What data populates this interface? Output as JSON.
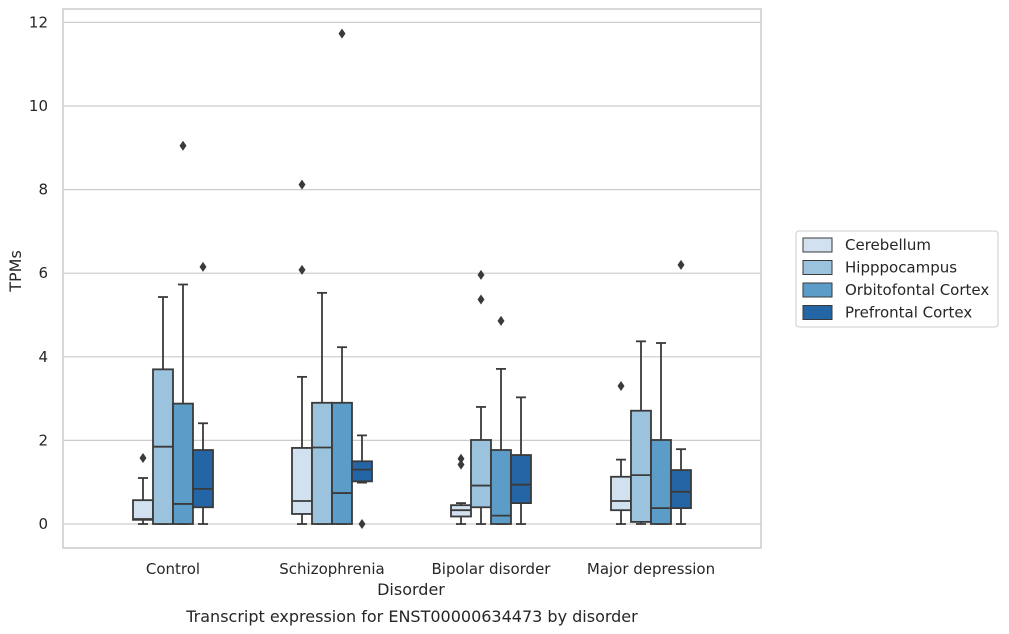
{
  "chart_data": {
    "type": "box",
    "caption": "Transcript expression for ENST00000634473 by disorder",
    "xlabel": "Disorder",
    "ylabel": "TPMs",
    "ylim": [
      -0.55,
      12.3
    ],
    "yticks": [
      0,
      2,
      4,
      6,
      8,
      10,
      12
    ],
    "grid": "horizontal",
    "legend_position": "right",
    "categories": [
      "Control",
      "Schizophrenia",
      "Bipolar disorder",
      "Major depression"
    ],
    "series": [
      {
        "name": "Cerebellum",
        "color": "#d1e1f0",
        "boxes": [
          {
            "min": 0.0,
            "q1": 0.1,
            "median": 0.12,
            "q3": 0.57,
            "max": 1.1,
            "outliers": [
              1.58
            ]
          },
          {
            "min": 0.0,
            "q1": 0.24,
            "median": 0.55,
            "q3": 1.82,
            "max": 3.52,
            "outliers": [
              6.08,
              8.12
            ]
          },
          {
            "min": 0.0,
            "q1": 0.18,
            "median": 0.33,
            "q3": 0.45,
            "max": 0.5,
            "outliers": [
              1.42,
              1.56
            ]
          },
          {
            "min": 0.0,
            "q1": 0.33,
            "median": 0.55,
            "q3": 1.13,
            "max": 1.54,
            "outliers": [
              3.3
            ]
          }
        ]
      },
      {
        "name": "Hipppocampus",
        "color": "#9cc3de",
        "boxes": [
          {
            "min": 0.0,
            "q1": 0.0,
            "median": 1.85,
            "q3": 3.7,
            "max": 5.43,
            "outliers": []
          },
          {
            "min": 0.0,
            "q1": 0.0,
            "median": 1.83,
            "q3": 2.9,
            "max": 5.53,
            "outliers": []
          },
          {
            "min": 0.0,
            "q1": 0.4,
            "median": 0.92,
            "q3": 2.01,
            "max": 2.8,
            "outliers": [
              5.37,
              5.96
            ]
          },
          {
            "min": 0.0,
            "q1": 0.05,
            "median": 1.17,
            "q3": 2.71,
            "max": 4.37,
            "outliers": []
          }
        ]
      },
      {
        "name": "Orbitofontal Cortex",
        "color": "#5b9cc8",
        "boxes": [
          {
            "min": 0.0,
            "q1": 0.0,
            "median": 0.48,
            "q3": 2.88,
            "max": 5.73,
            "outliers": [
              9.05
            ]
          },
          {
            "min": 0.0,
            "q1": 0.0,
            "median": 0.74,
            "q3": 2.9,
            "max": 4.23,
            "outliers": [
              11.73
            ]
          },
          {
            "min": 0.0,
            "q1": 0.0,
            "median": 0.2,
            "q3": 1.77,
            "max": 3.71,
            "outliers": [
              4.86
            ]
          },
          {
            "min": 0.0,
            "q1": 0.0,
            "median": 0.38,
            "q3": 2.01,
            "max": 4.33,
            "outliers": []
          }
        ]
      },
      {
        "name": "Prefrontal Cortex",
        "color": "#2465a5",
        "boxes": [
          {
            "min": 0.0,
            "q1": 0.4,
            "median": 0.84,
            "q3": 1.77,
            "max": 2.41,
            "outliers": [
              6.15
            ]
          },
          {
            "min": 0.99,
            "q1": 1.02,
            "median": 1.3,
            "q3": 1.5,
            "max": 2.12,
            "outliers": [
              0.0
            ]
          },
          {
            "min": 0.0,
            "q1": 0.5,
            "median": 0.94,
            "q3": 1.65,
            "max": 3.03,
            "outliers": []
          },
          {
            "min": 0.0,
            "q1": 0.38,
            "median": 0.77,
            "q3": 1.29,
            "max": 1.79,
            "outliers": [
              6.2
            ]
          }
        ]
      }
    ]
  }
}
